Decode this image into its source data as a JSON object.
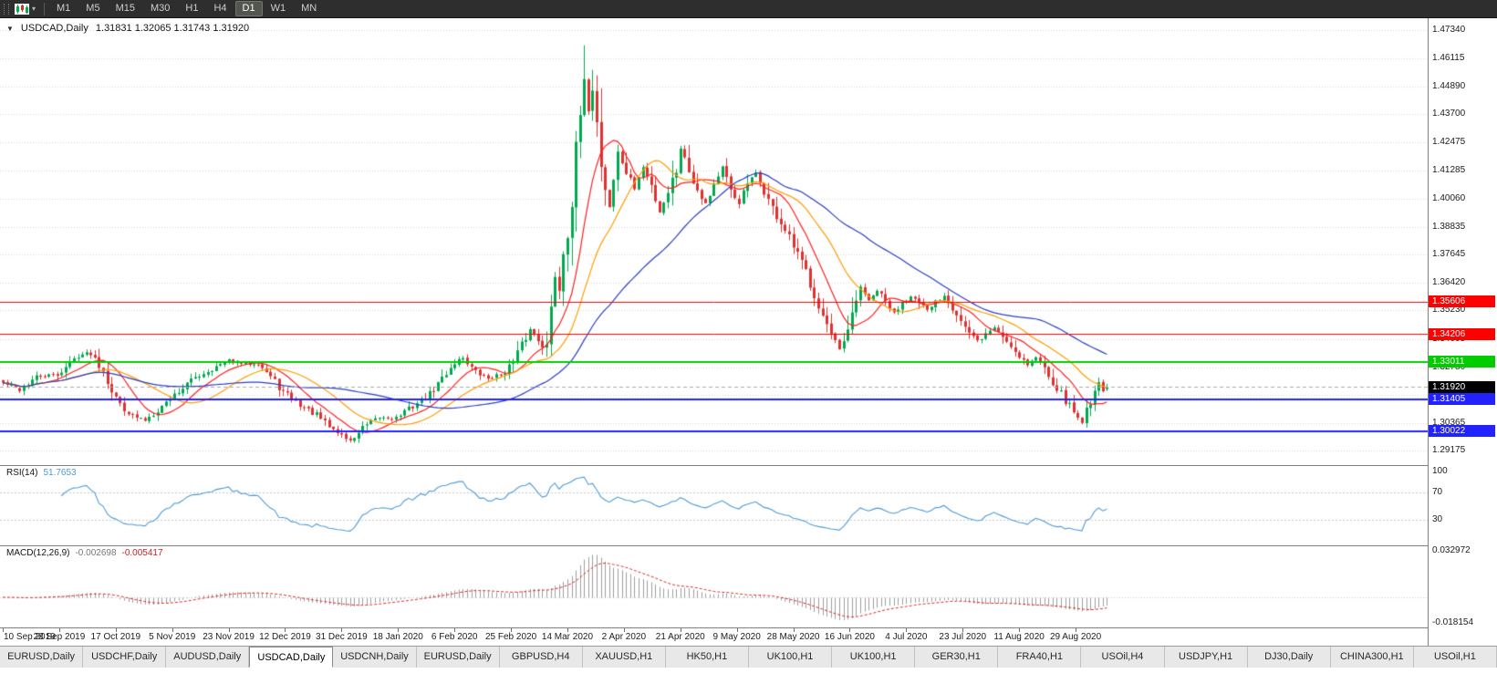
{
  "toolbar": {
    "timeframes": [
      "M1",
      "M5",
      "M15",
      "M30",
      "H1",
      "H4",
      "D1",
      "W1",
      "MN"
    ],
    "active_timeframe": "D1",
    "chart_icon": "candlestick-chart-icon",
    "caret_glyph": "▾"
  },
  "chart": {
    "title": "USDCAD,Daily",
    "ohlc_text": "1.31831 1.32065 1.31743 1.31920",
    "collapse_glyph": "▼"
  },
  "chart_data": {
    "type": "candlestick",
    "symbol": "USDCAD",
    "period": "Daily",
    "count": 265,
    "label_step": 13.5,
    "x_labels": [
      "10 Sep 2019",
      "28 Sep 2019",
      "17 Oct 2019",
      "5 Nov 2019",
      "23 Nov 2019",
      "12 Dec 2019",
      "31 Dec 2019",
      "18 Jan 2020",
      "6 Feb 2020",
      "25 Feb 2020",
      "14 Mar 2020",
      "2 Apr 2020",
      "21 Apr 2020",
      "9 May 2020",
      "28 May 2020",
      "16 Jun 2020",
      "4 Jul 2020",
      "23 Jul 2020",
      "11 Aug 2020",
      "29 Aug 2020"
    ],
    "price_axis_labels": [
      "1.47340",
      "1.46115",
      "1.44890",
      "1.43700",
      "1.42475",
      "1.41285",
      "1.40060",
      "1.38835",
      "1.37645",
      "1.36420",
      "1.35230",
      "1.34005",
      "1.32780",
      "1.31590",
      "1.30365",
      "1.29175"
    ],
    "view_price_top": 1.4785,
    "view_price_bottom": 1.2855,
    "close_anchors": [
      [
        0,
        1.321
      ],
      [
        4,
        1.318
      ],
      [
        8,
        1.3235
      ],
      [
        13,
        1.3245
      ],
      [
        18,
        1.333
      ],
      [
        21,
        1.334
      ],
      [
        24,
        1.327
      ],
      [
        27,
        1.314
      ],
      [
        31,
        1.3065
      ],
      [
        34,
        1.305
      ],
      [
        38,
        1.311
      ],
      [
        41,
        1.316
      ],
      [
        46,
        1.3235
      ],
      [
        50,
        1.327
      ],
      [
        54,
        1.3305
      ],
      [
        58,
        1.329
      ],
      [
        61,
        1.33
      ],
      [
        64,
        1.3235
      ],
      [
        67,
        1.317
      ],
      [
        71,
        1.3115
      ],
      [
        75,
        1.307
      ],
      [
        78,
        1.302
      ],
      [
        81,
        1.2985
      ],
      [
        83,
        1.2958
      ],
      [
        86,
        1.3015
      ],
      [
        90,
        1.306
      ],
      [
        94,
        1.306
      ],
      [
        98,
        1.311
      ],
      [
        102,
        1.316
      ],
      [
        105,
        1.323
      ],
      [
        108,
        1.33
      ],
      [
        110,
        1.332
      ],
      [
        113,
        1.3255
      ],
      [
        116,
        1.323
      ],
      [
        119,
        1.3245
      ],
      [
        122,
        1.33
      ],
      [
        124,
        1.337
      ],
      [
        126,
        1.344
      ],
      [
        128,
        1.34
      ],
      [
        130,
        1.336
      ],
      [
        132,
        1.369
      ],
      [
        133,
        1.363
      ],
      [
        134,
        1.378
      ],
      [
        135,
        1.39
      ],
      [
        136,
        1.401
      ],
      [
        137,
        1.418
      ],
      [
        138,
        1.436
      ],
      [
        139,
        1.448
      ],
      [
        140,
        1.439
      ],
      [
        141,
        1.45
      ],
      [
        142,
        1.433
      ],
      [
        143,
        1.417
      ],
      [
        144,
        1.405
      ],
      [
        145,
        1.397
      ],
      [
        146,
        1.409
      ],
      [
        147,
        1.42
      ],
      [
        149,
        1.412
      ],
      [
        151,
        1.405
      ],
      [
        153,
        1.414
      ],
      [
        155,
        1.406
      ],
      [
        157,
        1.395
      ],
      [
        159,
        1.404
      ],
      [
        161,
        1.413
      ],
      [
        162,
        1.423
      ],
      [
        164,
        1.413
      ],
      [
        166,
        1.405
      ],
      [
        168,
        1.3985
      ],
      [
        170,
        1.407
      ],
      [
        172,
        1.414
      ],
      [
        174,
        1.403
      ],
      [
        176,
        1.399
      ],
      [
        178,
        1.407
      ],
      [
        180,
        1.411
      ],
      [
        182,
        1.404
      ],
      [
        184,
        1.396
      ],
      [
        186,
        1.39
      ],
      [
        188,
        1.383
      ],
      [
        190,
        1.376
      ],
      [
        192,
        1.369
      ],
      [
        194,
        1.36
      ],
      [
        196,
        1.35
      ],
      [
        198,
        1.341
      ],
      [
        200,
        1.335
      ],
      [
        202,
        1.342
      ],
      [
        204,
        1.356
      ],
      [
        205,
        1.363
      ],
      [
        207,
        1.356
      ],
      [
        209,
        1.361
      ],
      [
        211,
        1.356
      ],
      [
        213,
        1.351
      ],
      [
        215,
        1.356
      ],
      [
        217,
        1.359
      ],
      [
        219,
        1.355
      ],
      [
        221,
        1.352
      ],
      [
        223,
        1.356
      ],
      [
        225,
        1.359
      ],
      [
        227,
        1.354
      ],
      [
        229,
        1.348
      ],
      [
        231,
        1.342
      ],
      [
        233,
        1.339
      ],
      [
        235,
        1.342
      ],
      [
        237,
        1.345
      ],
      [
        239,
        1.341
      ],
      [
        241,
        1.337
      ],
      [
        243,
        1.333
      ],
      [
        245,
        1.329
      ],
      [
        247,
        1.332
      ],
      [
        249,
        1.328
      ],
      [
        251,
        1.322
      ],
      [
        253,
        1.316
      ],
      [
        255,
        1.311
      ],
      [
        257,
        1.306
      ],
      [
        258,
        1.3048
      ],
      [
        259,
        1.309
      ],
      [
        260,
        1.314
      ],
      [
        261,
        1.318
      ],
      [
        262,
        1.322
      ],
      [
        263,
        1.317
      ],
      [
        264,
        1.3192
      ]
    ],
    "forced": {
      "peak_index": 139,
      "peak_high": 1.4668,
      "min_low": 1.2951
    },
    "last_candle": {
      "open": 1.31831,
      "high": 1.32065,
      "low": 1.31743,
      "close": 1.3192
    },
    "moving_averages": [
      {
        "type": "SMA",
        "period": 10,
        "color": "#ff2020"
      },
      {
        "type": "SMA",
        "period": 21,
        "color": "#ff9c00"
      },
      {
        "type": "SMA",
        "period": 45,
        "color": "#2b3fc4"
      }
    ],
    "h_lines": [
      {
        "price": 1.35606,
        "label": "1.35606",
        "color": "#ff0000",
        "width": 1
      },
      {
        "price": 1.34206,
        "label": "1.34206",
        "color": "#ff0000",
        "width": 1
      },
      {
        "price": 1.33011,
        "label": "1.33011",
        "color": "#00cc00",
        "width": 2
      },
      {
        "price": 1.31405,
        "label": "1.31405",
        "color": "#2222ff",
        "width": 2
      },
      {
        "price": 1.30022,
        "label": "1.30022",
        "color": "#2222ff",
        "width": 2
      }
    ],
    "current_price": {
      "value": 1.3192,
      "label": "1.31920",
      "tag_bg": "#000000",
      "line_color": "#aaaaaa"
    },
    "colors": {
      "up": "#00a94f",
      "down": "#e03131",
      "grid": "#d6d6d6",
      "background": "#ffffff"
    }
  },
  "rsi": {
    "name": "RSI(14)",
    "value_text": "51.7653",
    "period": 14,
    "line_color": "#4e9ad4",
    "levels": [
      {
        "value": 100,
        "label": "100"
      },
      {
        "value": 70,
        "label": "70"
      },
      {
        "value": 30,
        "label": "30"
      }
    ],
    "dashed_levels": [
      70,
      30
    ]
  },
  "macd": {
    "name": "MACD(12,26,9)",
    "main_text": "-0.002698",
    "signal_text": "-0.005417",
    "fast": 12,
    "slow": 26,
    "signal": 9,
    "scale_top_label": "0.032972",
    "scale_bottom_label": "-0.018154",
    "scale_top": 0.032972,
    "scale_bottom": -0.018154,
    "histogram_color": "#9e9e9e",
    "signal_color": "#d42a2a"
  },
  "tabs": {
    "active_index": 3,
    "items": [
      "EURUSD,Daily",
      "USDCHF,Daily",
      "AUDUSD,Daily",
      "USDCAD,Daily",
      "USDCNH,Daily",
      "EURUSD,Daily",
      "GBPUSD,H4",
      "XAUUSD,H1",
      "HK50,H1",
      "UK100,H1",
      "UK100,H1",
      "GER30,H1",
      "FRA40,H1",
      "USOil,H4",
      "USDJPY,H1",
      "DJ30,Daily",
      "CHINA300,H1",
      "USOil,H1"
    ]
  }
}
